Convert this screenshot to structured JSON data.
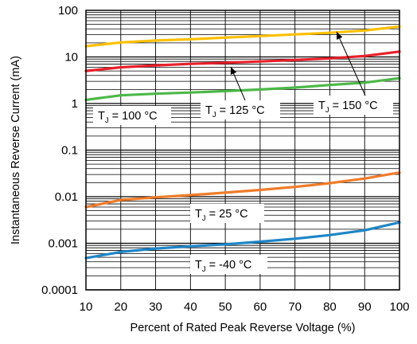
{
  "chart_data": {
    "type": "line",
    "title": "",
    "xlabel": "Percent of Rated Peak Reverse Voltage (%)",
    "ylabel": "Instantaneous Reverse Current (mA)",
    "xlim": [
      10,
      100
    ],
    "ylim": [
      0.0001,
      100
    ],
    "y_scale": "log",
    "grid": true,
    "x_ticks": [
      "10",
      "20",
      "30",
      "40",
      "50",
      "60",
      "70",
      "80",
      "90",
      "100"
    ],
    "y_ticks": [
      "100",
      "10",
      "1",
      "0.1",
      "0.01",
      "0.001",
      "0.0001"
    ],
    "x": [
      10,
      20,
      30,
      40,
      50,
      60,
      70,
      80,
      90,
      100
    ],
    "series": [
      {
        "color": "#FFC000",
        "values": [
          17,
          20.5,
          22.5,
          24,
          26,
          28,
          30.5,
          33,
          37,
          45
        ]
      },
      {
        "color": "#E8202A",
        "values": [
          5.0,
          6.0,
          6.6,
          7.1,
          7.5,
          8.0,
          8.6,
          9.3,
          10.5,
          13.0
        ]
      },
      {
        "color": "#4CB848",
        "values": [
          1.2,
          1.5,
          1.62,
          1.72,
          1.85,
          2.0,
          2.2,
          2.5,
          2.8,
          3.5
        ]
      },
      {
        "color": "#F07C2A",
        "values": [
          0.006,
          0.0085,
          0.0097,
          0.0108,
          0.0122,
          0.014,
          0.0162,
          0.0195,
          0.0245,
          0.033
        ]
      },
      {
        "color": "#1F86C8",
        "values": [
          0.00048,
          0.00065,
          0.00077,
          0.00086,
          0.00095,
          0.00108,
          0.00125,
          0.0015,
          0.0019,
          0.0028
        ]
      }
    ],
    "annotations": [
      {
        "label": "T",
        "sub": "J",
        "text": " = 100 °C"
      },
      {
        "label": "T",
        "sub": "J",
        "text": " = 125 °C"
      },
      {
        "label": "T",
        "sub": "J",
        "text": " = 150 °C"
      },
      {
        "label": "T",
        "sub": "J",
        "text": " = 25 °C"
      },
      {
        "label": "T",
        "sub": "J",
        "text": " = -40 °C"
      }
    ]
  }
}
